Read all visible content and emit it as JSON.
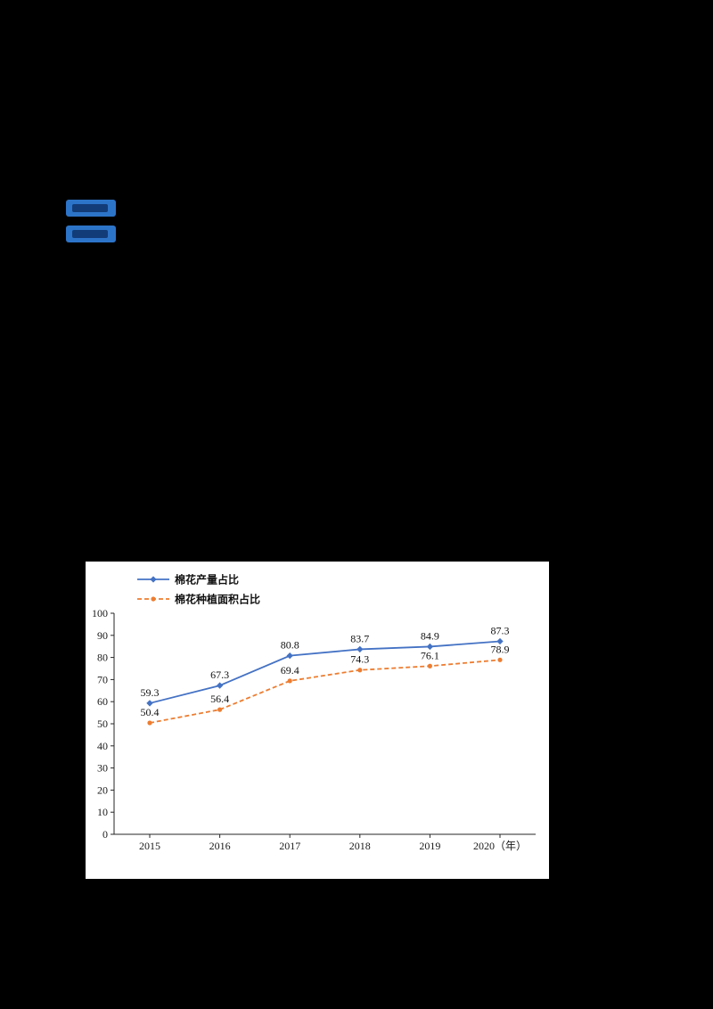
{
  "page": {
    "background": "#000000"
  },
  "badges": [
    {
      "name": "blue-highlight-badge-1",
      "color": "#2c74c8"
    },
    {
      "name": "blue-highlight-badge-2",
      "color": "#2c74c8"
    }
  ],
  "chart_data": {
    "type": "line",
    "title": "",
    "xlabel": "",
    "ylabel": "",
    "categories": [
      "2015",
      "2016",
      "2017",
      "2018",
      "2019",
      "2020（年）"
    ],
    "series": [
      {
        "name": "棉花产量占比",
        "color": "#4472c4",
        "style": "solid",
        "marker": "diamond",
        "values": [
          59.3,
          67.3,
          80.8,
          83.7,
          84.9,
          87.3
        ]
      },
      {
        "name": "棉花种植面积占比",
        "color": "#ed7d31",
        "style": "dashed",
        "marker": "circle",
        "values": [
          50.4,
          56.4,
          69.4,
          74.3,
          76.1,
          78.9
        ]
      }
    ],
    "ylim": [
      0,
      100
    ],
    "ytick_step": 10,
    "yticks": [
      0,
      10,
      20,
      30,
      40,
      50,
      60,
      70,
      80,
      90,
      100
    ],
    "grid": false,
    "legend_position": "top-left",
    "axis_color": "#262626",
    "panel_background": "#ffffff"
  }
}
